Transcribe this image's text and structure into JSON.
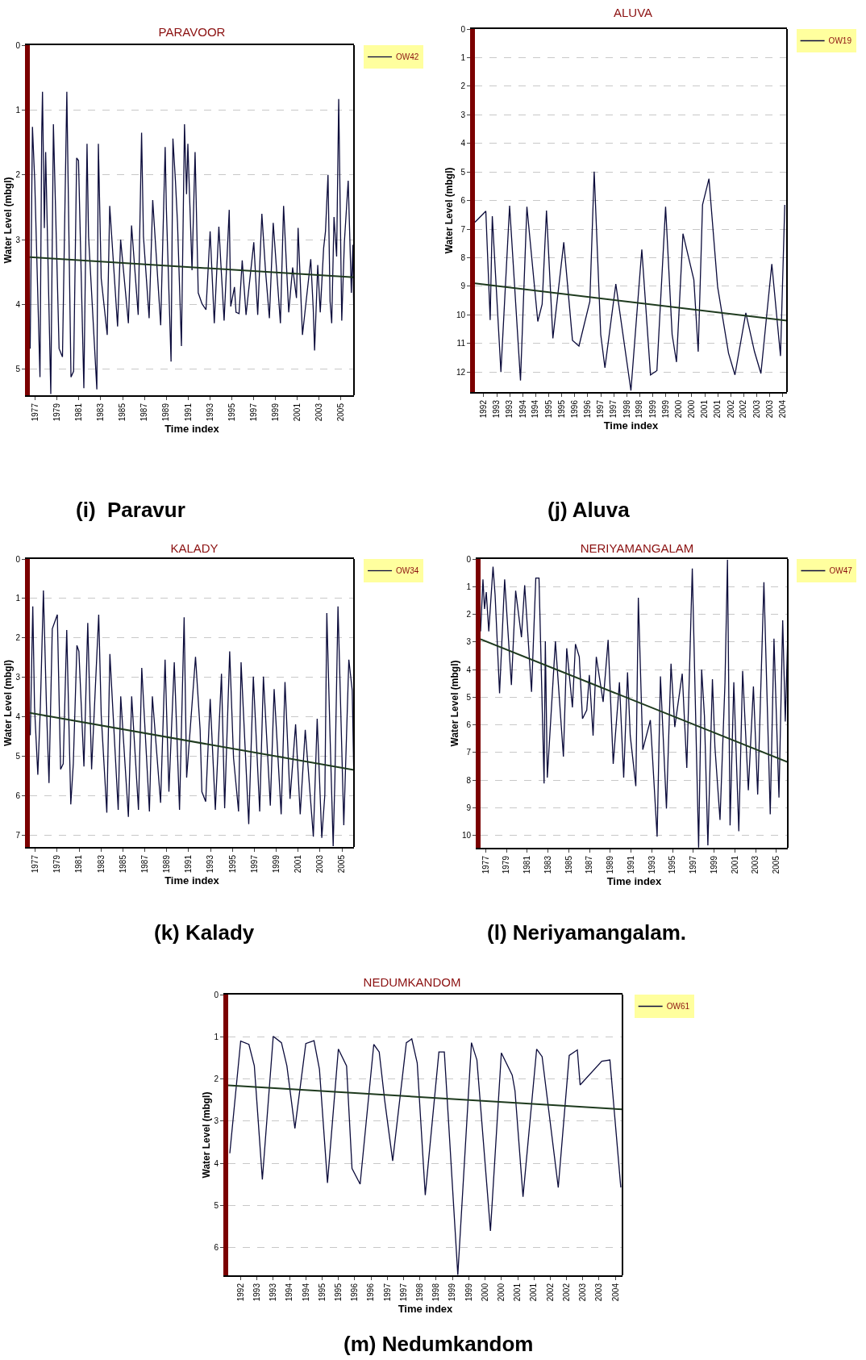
{
  "chart_data": [
    {
      "type": "line",
      "title": "PARAVOOR",
      "xlabel": "Time index",
      "ylabel": "Water Level (mbgl)",
      "annotations": [
        "(i)  Paravur"
      ],
      "xlim": [
        1976.5,
        2006.2
      ],
      "ylim": [
        5.4,
        0
      ],
      "xticks": [
        1977,
        1979,
        1981,
        1983,
        1985,
        1987,
        1989,
        1991,
        1993,
        1995,
        1997,
        1999,
        2001,
        2003,
        2005
      ],
      "yticks": [
        0,
        1,
        2,
        3,
        4,
        5
      ],
      "grid": "y",
      "legend": "top right",
      "series": [
        {
          "name": "OW42",
          "color": "#0b0b3b",
          "x": [
            1976.53,
            1976.74,
            1976.95,
            1977.43,
            1977.59,
            1977.66,
            1977.83,
            1977.95,
            1978.42,
            1978.66,
            1979.18,
            1979.49,
            1979.89,
            1980.27,
            1980.51,
            1980.79,
            1980.96,
            1981.45,
            1981.74,
            1981.88,
            1982.64,
            1982.78,
            1983.04,
            1983.59,
            1983.82,
            1984.54,
            1984.82,
            1985.53,
            1985.82,
            1986.43,
            1986.74,
            1986.91,
            1987.43,
            1987.76,
            1988.49,
            1988.9,
            1989.01,
            1989.44,
            1989.61,
            1989.84,
            1990.03,
            1990.39,
            1990.67,
            1990.86,
            1990.98,
            1991.36,
            1991.64,
            1991.93,
            1992.28,
            1992.64,
            1993.02,
            1993.4,
            1993.82,
            1994.01,
            1994.3,
            1994.77,
            1994.91,
            1995.25,
            1995.39,
            1995.67,
            1995.96,
            1996.31,
            1997.02,
            1997.38,
            1997.76,
            1998.09,
            1998.45,
            1998.8,
            1999.46,
            1999.75,
            2000.22,
            2000.58,
            2000.93,
            2001.08,
            2001.48,
            2002.24,
            2002.47,
            2002.59,
            2002.88,
            2003.11,
            2003.42,
            2003.59,
            2003.82,
            2004.01,
            2004.16,
            2004.37,
            2004.61,
            2004.8,
            2005.08,
            2005.32,
            2005.67,
            2005.96,
            2006.1,
            2006.18
          ],
          "values": [
            4.68,
            1.26,
            2.09,
            5.12,
            1.35,
            0.72,
            2.82,
            1.65,
            5.38,
            1.22,
            4.68,
            4.81,
            0.72,
            5.12,
            5.03,
            1.74,
            1.78,
            5.29,
            1.52,
            2.95,
            5.31,
            1.52,
            3.6,
            4.47,
            2.48,
            4.34,
            3.0,
            4.29,
            2.78,
            4.16,
            1.35,
            2.95,
            4.21,
            2.39,
            4.32,
            1.57,
            2.52,
            4.88,
            1.44,
            2.09,
            2.74,
            4.64,
            1.22,
            2.3,
            1.52,
            3.47,
            1.65,
            3.82,
            3.99,
            4.08,
            2.87,
            4.29,
            2.8,
            3.39,
            4.25,
            2.54,
            4.03,
            3.73,
            4.12,
            4.14,
            3.32,
            4.16,
            3.04,
            4.16,
            2.6,
            3.47,
            4.21,
            2.74,
            4.29,
            2.48,
            4.12,
            3.43,
            3.9,
            2.82,
            4.47,
            3.3,
            4.08,
            4.71,
            3.39,
            4.12,
            3.13,
            2.87,
            2.0,
            3.95,
            4.29,
            2.65,
            3.26,
            0.83,
            4.25,
            3.04,
            2.09,
            3.82,
            3.08,
            4.12
          ]
        },
        {
          "type": "line",
          "color": "#1e3a1e",
          "x": [
            1976.5,
            2006.2
          ],
          "values": [
            3.27,
            3.58
          ]
        }
      ]
    },
    {
      "type": "line",
      "title": "ALUVA",
      "xlabel": "Time index",
      "ylabel": "Water Level (mbgl)",
      "annotations": [
        "(j) Aluva"
      ],
      "xlim": [
        "1992-04",
        "2004-04"
      ],
      "xticks": [
        {
          "value": "1992-08",
          "label": "1992"
        },
        {
          "value": "1993-02",
          "label": "1993"
        },
        {
          "value": "1993-08",
          "label": "1993"
        },
        {
          "value": "1994-02",
          "label": "1994"
        },
        {
          "value": "1994-08",
          "label": "1994"
        },
        {
          "value": "1995-02",
          "label": "1995"
        },
        {
          "value": "1995-08",
          "label": "1995"
        },
        {
          "value": "1996-02",
          "label": "1996"
        },
        {
          "value": "1996-08",
          "label": "1996"
        },
        {
          "value": "1997-02",
          "label": "1997"
        },
        {
          "value": "1997-08",
          "label": "1997"
        },
        {
          "value": "1998-02",
          "label": "1998"
        },
        {
          "value": "1998-08",
          "label": "1998"
        },
        {
          "value": "1999-02",
          "label": "1999"
        },
        {
          "value": "1999-08",
          "label": "1999"
        },
        {
          "value": "2000-02",
          "label": "2000"
        },
        {
          "value": "2000-08",
          "label": "2000"
        },
        {
          "value": "2001-02",
          "label": "2001"
        },
        {
          "value": "2001-08",
          "label": "2001"
        },
        {
          "value": "2002-02",
          "label": "2002"
        },
        {
          "value": "2002-08",
          "label": "2002"
        },
        {
          "value": "2003-02",
          "label": "2003"
        },
        {
          "value": "2003-08",
          "label": "2003"
        },
        {
          "value": "2004-02",
          "label": "2004"
        }
      ],
      "ylim": [
        12.7,
        0
      ],
      "yticks": [
        0,
        1,
        2,
        3,
        4,
        5,
        6,
        7,
        8,
        9,
        10,
        11,
        12
      ],
      "grid": "y",
      "legend": "top right",
      "series": [
        {
          "name": "OW19",
          "color": "#0b0b3b",
          "x": [
            "1992-04",
            "1992-09",
            "1992-11",
            "1992-12",
            "1993-04",
            "1993-08",
            "1994-01",
            "1994-04",
            "1994-09",
            "1994-11",
            "1995-01",
            "1995-04",
            "1995-09",
            "1996-01",
            "1996-04",
            "1996-09",
            "1996-11",
            "1997-02",
            "1997-04",
            "1997-09",
            "1998-04",
            "1998-09",
            "1999-01",
            "1999-04",
            "1999-08",
            "1999-11",
            "2000-01",
            "2000-04",
            "2000-09",
            "2000-11",
            "2001-01",
            "2001-04",
            "2001-08",
            "2002-01",
            "2002-04",
            "2002-09",
            "2003-01",
            "2003-04",
            "2003-09",
            "2004-01",
            "2004-03"
          ],
          "values": [
            6.76,
            6.37,
            10.18,
            6.55,
            12.0,
            6.18,
            12.3,
            6.22,
            10.23,
            9.63,
            6.35,
            10.82,
            7.46,
            10.89,
            11.09,
            9.53,
            4.99,
            10.69,
            11.85,
            8.92,
            12.65,
            7.71,
            12.1,
            11.95,
            6.22,
            10.69,
            11.65,
            7.16,
            8.77,
            11.29,
            6.15,
            5.24,
            9.02,
            11.34,
            12.1,
            9.93,
            11.29,
            12.05,
            8.22,
            11.44,
            6.15
          ]
        },
        {
          "type": "line",
          "color": "#1e3a1e",
          "x": [
            "1992-04",
            "2004-04"
          ],
          "values": [
            8.9,
            10.2
          ]
        }
      ]
    },
    {
      "type": "line",
      "title": "KALADY",
      "xlabel": "Time index",
      "ylabel": "Water Level (mbgl)",
      "annotations": [
        "(k) Kalady"
      ],
      "xlim": [
        1976.5,
        2006.1
      ],
      "ylim": [
        7.3,
        0
      ],
      "xticks": [
        1977,
        1979,
        1981,
        1983,
        1985,
        1987,
        1989,
        1991,
        1993,
        1995,
        1997,
        1999,
        2001,
        2003,
        2005
      ],
      "yticks": [
        0,
        1,
        2,
        3,
        4,
        5,
        6,
        7
      ],
      "grid": "y",
      "legend": "top right",
      "series": [
        {
          "name": "OW34",
          "color": "#0b0b3b",
          "x": [
            1976.54,
            1976.77,
            1976.93,
            1977.23,
            1977.46,
            1977.74,
            1978.02,
            1978.25,
            1978.55,
            1979.01,
            1979.31,
            1979.55,
            1979.87,
            1980.24,
            1980.47,
            1980.8,
            1980.98,
            1981.44,
            1981.79,
            1982.14,
            1982.79,
            1983.02,
            1983.53,
            1983.81,
            1984.57,
            1984.8,
            1985.5,
            1985.8,
            1986.42,
            1986.72,
            1987.42,
            1987.69,
            1988.44,
            1988.85,
            1989.2,
            1989.69,
            1990.17,
            1990.59,
            1990.82,
            1991.63,
            1992.05,
            1992.21,
            1992.56,
            1992.97,
            1993.44,
            1994.0,
            1994.29,
            1994.75,
            1995.1,
            1995.56,
            1995.79,
            1996.49,
            1996.91,
            1997.49,
            1997.83,
            1998.46,
            1998.81,
            1999.45,
            1999.8,
            2000.26,
            2000.77,
            2001.19,
            2001.65,
            2002.39,
            2002.74,
            2003.16,
            2003.44,
            2003.62,
            2003.9,
            2004.2,
            2004.36,
            2004.64,
            2005.17,
            2005.63,
            2005.94,
            2006.1
          ],
          "values": [
            4.47,
            1.2,
            3.76,
            5.47,
            3.76,
            0.8,
            3.76,
            5.68,
            1.77,
            1.41,
            5.33,
            5.19,
            1.8,
            6.22,
            5.19,
            2.19,
            2.34,
            5.26,
            1.62,
            5.33,
            1.41,
            3.97,
            6.43,
            2.41,
            6.36,
            3.48,
            6.54,
            3.48,
            6.36,
            2.76,
            6.4,
            3.48,
            6.18,
            2.55,
            5.9,
            2.62,
            6.36,
            1.48,
            5.54,
            2.48,
            4.33,
            5.9,
            6.15,
            3.55,
            6.36,
            2.91,
            6.32,
            2.34,
            5.04,
            6.4,
            2.62,
            6.72,
            2.98,
            6.4,
            2.98,
            6.25,
            3.3,
            6.47,
            3.12,
            6.08,
            4.19,
            6.47,
            4.33,
            7.04,
            4.05,
            7.07,
            5.97,
            1.37,
            4.33,
            7.28,
            5.54,
            1.2,
            6.75,
            2.55,
            3.33,
            5.68
          ]
        },
        {
          "type": "line",
          "color": "#1e3a1e",
          "x": [
            1976.5,
            2006.1
          ],
          "values": [
            3.9,
            5.35
          ]
        }
      ]
    },
    {
      "type": "line",
      "title": "NERIYAMANGALAM",
      "xlabel": "Time index",
      "ylabel": "Water Level (mbgl)",
      "annotations": [
        "(l) Neriyamangalam."
      ],
      "xlim": [
        1976.5,
        2006.1
      ],
      "ylim": [
        10.45,
        0
      ],
      "xticks": [
        1977,
        1979,
        1981,
        1983,
        1985,
        1987,
        1989,
        1991,
        1993,
        1995,
        1997,
        1999,
        2001,
        2003,
        2005
      ],
      "yticks": [
        0,
        1,
        2,
        3,
        4,
        5,
        6,
        7,
        8,
        9,
        10
      ],
      "grid": "y",
      "legend": "top right",
      "series": [
        {
          "name": "OW47",
          "color": "#0b0b3b",
          "x": [
            1976.5,
            1976.73,
            1976.88,
            1977.05,
            1977.29,
            1977.7,
            1977.9,
            1978.33,
            1978.82,
            1979.47,
            1979.88,
            1980.44,
            1980.75,
            1981.41,
            1981.82,
            1982.13,
            1982.62,
            1982.74,
            1982.93,
            1983.71,
            1984.48,
            1984.8,
            1985.35,
            1985.64,
            1986.01,
            1986.32,
            1986.73,
            1986.98,
            1987.34,
            1987.65,
            1988.31,
            1988.79,
            1989.28,
            1989.88,
            1990.29,
            1990.66,
            1990.92,
            1991.46,
            1991.7,
            1992.13,
            1992.86,
            1993.51,
            1993.83,
            1994.41,
            1994.85,
            1995.21,
            1995.93,
            1996.37,
            1996.9,
            1997.51,
            1997.8,
            1998.07,
            1998.4,
            1998.84,
            1999.08,
            1999.57,
            2000.05,
            2000.29,
            2000.54,
            2000.9,
            2001.38,
            2001.75,
            2002.3,
            2002.79,
            2003.2,
            2003.8,
            2004.41,
            2004.77,
            2005.25,
            2005.61,
            2005.86,
            2006.1
          ],
          "values": [
            2.62,
            0.74,
            1.81,
            1.2,
            2.62,
            0.28,
            1.3,
            4.86,
            0.74,
            4.56,
            1.15,
            2.83,
            0.95,
            4.81,
            0.69,
            0.69,
            8.12,
            2.98,
            7.91,
            2.98,
            7.15,
            3.23,
            5.37,
            3.08,
            3.54,
            5.78,
            5.47,
            4.2,
            6.39,
            3.54,
            5.17,
            2.93,
            7.41,
            4.46,
            7.91,
            4.1,
            6.39,
            8.22,
            1.4,
            6.9,
            5.83,
            10.05,
            4.25,
            9.03,
            3.79,
            6.08,
            4.15,
            7.56,
            0.34,
            10.44,
            4.0,
            5.68,
            10.36,
            4.35,
            6.8,
            9.44,
            4.46,
            0.03,
            9.64,
            4.46,
            9.85,
            4.05,
            8.37,
            4.61,
            8.52,
            0.84,
            9.24,
            2.88,
            8.63,
            2.22,
            5.88,
            2.73
          ]
        },
        {
          "type": "line",
          "color": "#1e3a1e",
          "x": [
            1976.5,
            2006.1
          ],
          "values": [
            2.9,
            7.35
          ]
        }
      ]
    },
    {
      "type": "line",
      "title": "NEDUMKANDOM",
      "xlabel": "Time index",
      "ylabel": "Water Level (mbgl)",
      "annotations": [
        "(m) Nedumkandom"
      ],
      "xlim": [
        "1992-03-14",
        "2004-04-20"
      ],
      "xticks": [
        {
          "value": "1992-08",
          "label": "1992"
        },
        {
          "value": "1993-02",
          "label": "1993"
        },
        {
          "value": "1993-08",
          "label": "1993"
        },
        {
          "value": "1994-02",
          "label": "1994"
        },
        {
          "value": "1994-08",
          "label": "1994"
        },
        {
          "value": "1995-02",
          "label": "1995"
        },
        {
          "value": "1995-08",
          "label": "1995"
        },
        {
          "value": "1996-02",
          "label": "1996"
        },
        {
          "value": "1996-08",
          "label": "1996"
        },
        {
          "value": "1997-02",
          "label": "1997"
        },
        {
          "value": "1997-08",
          "label": "1997"
        },
        {
          "value": "1998-02",
          "label": "1998"
        },
        {
          "value": "1998-08",
          "label": "1998"
        },
        {
          "value": "1999-02",
          "label": "1999"
        },
        {
          "value": "1999-08",
          "label": "1999"
        },
        {
          "value": "2000-02",
          "label": "2000"
        },
        {
          "value": "2000-08",
          "label": "2000"
        },
        {
          "value": "2001-02",
          "label": "2001"
        },
        {
          "value": "2001-08",
          "label": "2001"
        },
        {
          "value": "2002-02",
          "label": "2002"
        },
        {
          "value": "2002-08",
          "label": "2002"
        },
        {
          "value": "2003-02",
          "label": "2003"
        },
        {
          "value": "2003-08",
          "label": "2003"
        },
        {
          "value": "2004-02",
          "label": "2004"
        }
      ],
      "ylim": [
        6.65,
        0
      ],
      "yticks": [
        0,
        1,
        2,
        3,
        4,
        5,
        6
      ],
      "grid": "y",
      "legend": "top right",
      "series": [
        {
          "name": "OW61",
          "color": "#0b0b3b",
          "x": [
            "1992-04",
            "1992-08",
            "1992-11",
            "1993-01",
            "1993-04",
            "1993-08",
            "1993-11",
            "1994-01",
            "1994-04",
            "1994-08",
            "1994-11",
            "1995-01",
            "1995-04",
            "1995-08",
            "1995-11",
            "1996-01",
            "1996-04",
            "1996-09",
            "1996-11",
            "1997-01",
            "1997-04",
            "1997-09",
            "1997-11",
            "1998-01",
            "1998-04",
            "1998-09",
            "1998-11",
            "1999-04",
            "1999-09",
            "1999-11",
            "2000-04",
            "2000-08",
            "2000-12",
            "2001-01",
            "2001-04",
            "2001-09",
            "2001-11",
            "2002-05",
            "2002-09",
            "2002-12",
            "2003-01",
            "2003-09",
            "2003-12",
            "2004-04"
          ],
          "values": [
            3.76,
            1.1,
            1.18,
            1.69,
            4.38,
            0.99,
            1.14,
            1.69,
            3.17,
            1.16,
            1.09,
            1.77,
            4.46,
            1.29,
            1.69,
            4.12,
            4.49,
            1.18,
            1.36,
            2.5,
            3.94,
            1.14,
            1.05,
            1.62,
            4.75,
            1.36,
            1.36,
            6.64,
            1.14,
            1.55,
            5.6,
            1.38,
            1.91,
            2.28,
            4.79,
            1.29,
            1.47,
            4.57,
            1.44,
            1.31,
            2.14,
            1.58,
            1.55,
            4.57
          ]
        },
        {
          "type": "line",
          "color": "#1e3a1e",
          "x": [
            "1992-03-14",
            "2004-04-20"
          ],
          "values": [
            2.15,
            2.72
          ]
        }
      ]
    }
  ]
}
